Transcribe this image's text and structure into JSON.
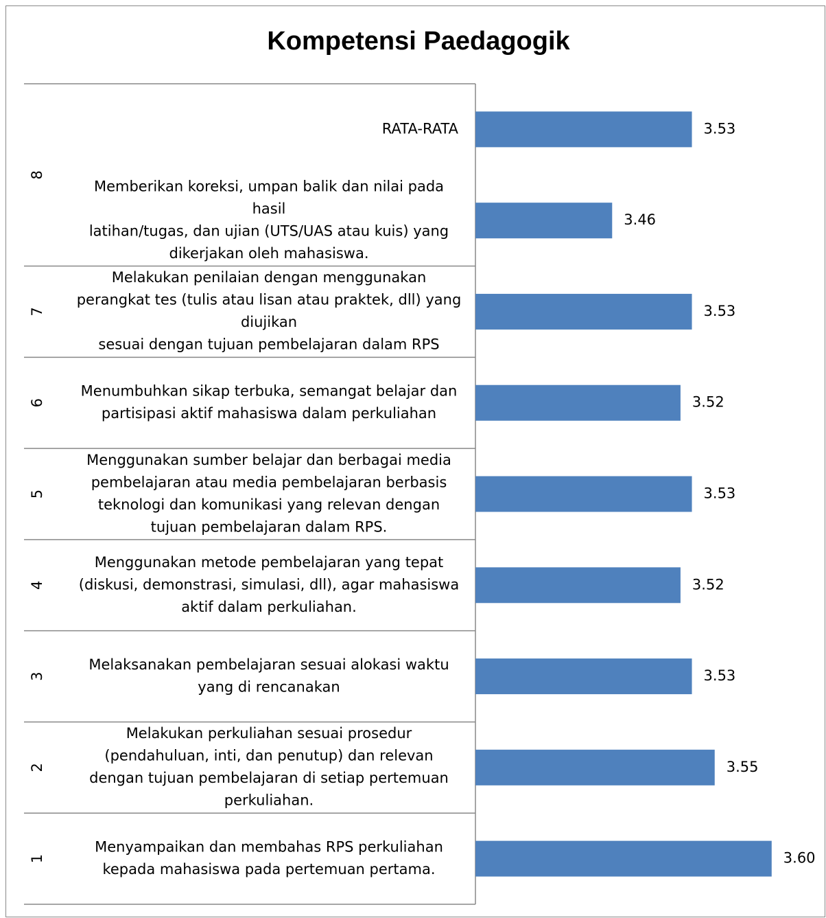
{
  "chart_data": {
    "type": "bar",
    "orientation": "horizontal",
    "title": "Kompetensi Paedagogik",
    "color": "#4f81bd",
    "xlim": [
      3.34,
      3.62
    ],
    "groups": [
      {
        "label": "1",
        "categories": [
          {
            "lines": [
              "Menyampaikan dan membahas RPS perkuliahan",
              "kepada mahasiswa pada pertemuan pertama."
            ],
            "value": 3.6,
            "value_label": "3.60"
          }
        ]
      },
      {
        "label": "2",
        "categories": [
          {
            "lines": [
              "Melakukan perkuliahan sesuai prosedur",
              "(pendahuluan, inti, dan penutup) dan relevan",
              "dengan tujuan pembelajaran di setiap pertemuan",
              "perkuliahan."
            ],
            "value": 3.55
          }
        ]
      },
      {
        "label": "3",
        "categories": [
          {
            "lines": [
              "Melaksanakan pembelajaran sesuai alokasi waktu",
              "yang di rencanakan"
            ],
            "value": 3.53
          }
        ]
      },
      {
        "label": "4",
        "categories": [
          {
            "lines": [
              "Menggunakan metode pembelajaran yang tepat",
              "(diskusi, demonstrasi, simulasi, dll), agar mahasiswa",
              "aktif dalam perkuliahan."
            ],
            "value": 3.52
          }
        ]
      },
      {
        "label": "5",
        "categories": [
          {
            "lines": [
              "Menggunakan sumber belajar dan berbagai media",
              "pembelajaran atau media pembelajaran berbasis",
              "teknologi dan komunikasi yang relevan dengan",
              "tujuan pembelajaran dalam RPS."
            ],
            "value": 3.53
          }
        ]
      },
      {
        "label": "6",
        "categories": [
          {
            "lines": [
              "Menumbuhkan sikap terbuka, semangat belajar dan",
              "partisipasi aktif mahasiswa dalam perkuliahan"
            ],
            "value": 3.52
          }
        ]
      },
      {
        "label": "7",
        "categories": [
          {
            "lines": [
              "Melakukan penilaian dengan menggunakan",
              "perangkat tes (tulis atau lisan atau praktek, dll) yang",
              "diujikan",
              "sesuai dengan tujuan pembelajaran dalam RPS"
            ],
            "value": 3.53
          }
        ]
      },
      {
        "label": "8",
        "categories": [
          {
            "lines": [
              "Memberikan koreksi, umpan balik dan nilai pada",
              "hasil",
              "latihan/tugas, dan ujian (UTS/UAS atau kuis) yang",
              "dikerjakan oleh mahasiswa."
            ],
            "value": 3.46
          },
          {
            "lines": [
              "RATA-RATA"
            ],
            "value": 3.53
          }
        ]
      }
    ]
  }
}
